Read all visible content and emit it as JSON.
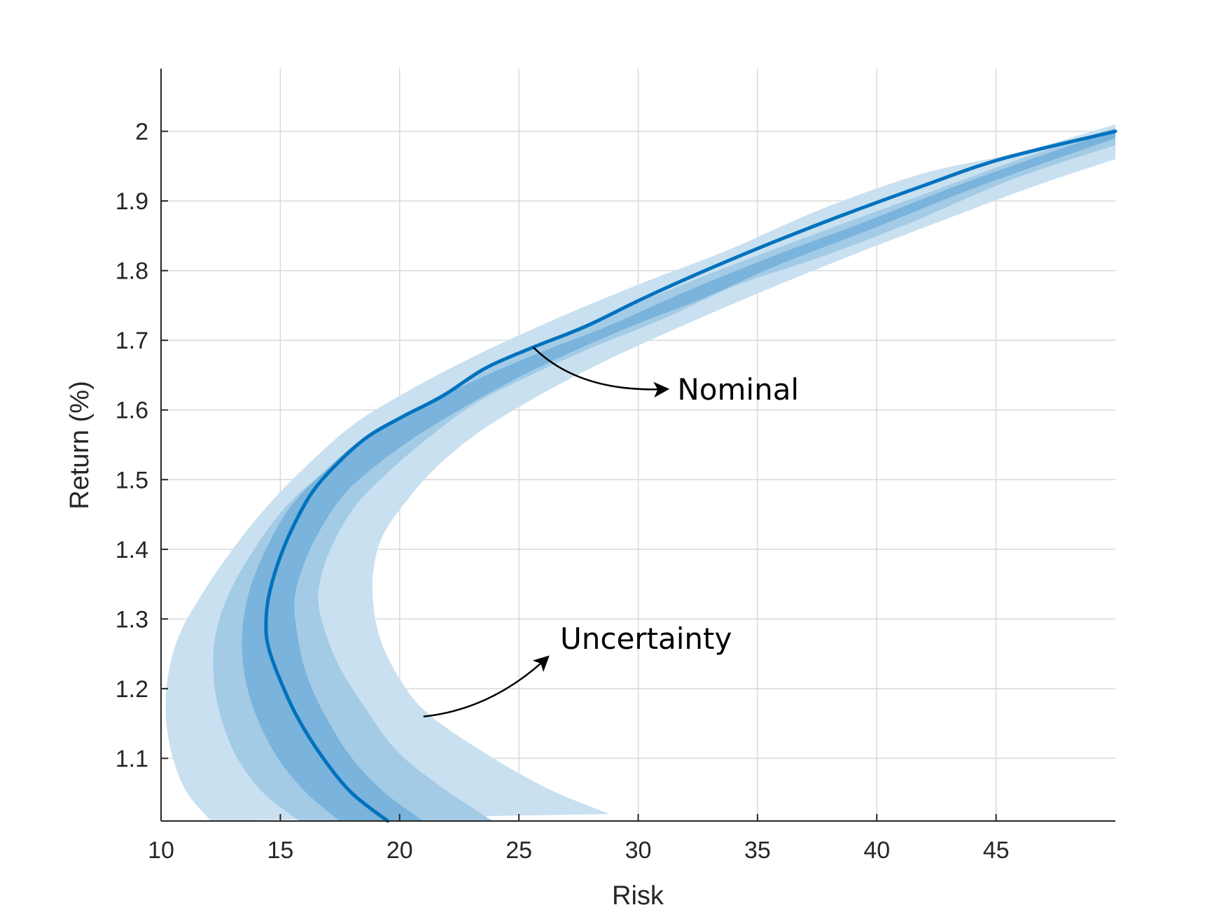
{
  "chart_data": {
    "type": "line",
    "xlabel": "Risk",
    "ylabel": "Return (%)",
    "xlim": [
      10,
      50
    ],
    "ylim": [
      1.01,
      2.09
    ],
    "xticks": [
      10,
      15,
      20,
      25,
      30,
      35,
      40,
      45
    ],
    "yticks": [
      1.1,
      1.2,
      1.3,
      1.4,
      1.5,
      1.6,
      1.7,
      1.8,
      1.9,
      2.0
    ],
    "xtick_labels": [
      "10",
      "15",
      "20",
      "25",
      "30",
      "35",
      "40",
      "45"
    ],
    "ytick_labels": [
      "1.1",
      "1.2",
      "1.3",
      "1.4",
      "1.5",
      "1.6",
      "1.7",
      "1.8",
      "1.9",
      "2"
    ],
    "grid": true,
    "series": [
      {
        "name": "Nominal",
        "color": "#0072bd",
        "points": [
          [
            19.5,
            1.01
          ],
          [
            18.0,
            1.05
          ],
          [
            16.8,
            1.1
          ],
          [
            15.7,
            1.16
          ],
          [
            14.9,
            1.22
          ],
          [
            14.5,
            1.26
          ],
          [
            14.4,
            1.29
          ],
          [
            14.5,
            1.33
          ],
          [
            14.9,
            1.38
          ],
          [
            15.5,
            1.43
          ],
          [
            16.3,
            1.48
          ],
          [
            17.3,
            1.52
          ],
          [
            18.6,
            1.56
          ],
          [
            20.1,
            1.59
          ],
          [
            21.8,
            1.62
          ],
          [
            23.6,
            1.66
          ],
          [
            25.6,
            1.69
          ],
          [
            27.8,
            1.72
          ],
          [
            30.2,
            1.76
          ],
          [
            32.8,
            1.8
          ],
          [
            35.6,
            1.84
          ],
          [
            38.6,
            1.88
          ],
          [
            41.8,
            1.92
          ],
          [
            45.2,
            1.96
          ],
          [
            50.0,
            2.0
          ]
        ]
      }
    ],
    "bands": [
      {
        "name": "outer",
        "color": "#c9e0f0",
        "left": [
          [
            12.1,
            1.01
          ],
          [
            11.1,
            1.05
          ],
          [
            10.5,
            1.1
          ],
          [
            10.2,
            1.16
          ],
          [
            10.3,
            1.22
          ],
          [
            10.8,
            1.28
          ],
          [
            11.8,
            1.34
          ],
          [
            13.0,
            1.4
          ],
          [
            14.4,
            1.46
          ],
          [
            16.1,
            1.52
          ],
          [
            18.1,
            1.58
          ],
          [
            20.5,
            1.63
          ],
          [
            23.3,
            1.68
          ],
          [
            26.5,
            1.73
          ],
          [
            30.0,
            1.78
          ],
          [
            33.8,
            1.83
          ],
          [
            37.8,
            1.89
          ],
          [
            42.0,
            1.94
          ],
          [
            46.0,
            1.97
          ],
          [
            50.0,
            2.01
          ]
        ],
        "right": [
          [
            28.8,
            1.02
          ],
          [
            26.0,
            1.06
          ],
          [
            23.0,
            1.12
          ],
          [
            21.0,
            1.17
          ],
          [
            19.9,
            1.22
          ],
          [
            19.2,
            1.27
          ],
          [
            18.9,
            1.32
          ],
          [
            18.9,
            1.37
          ],
          [
            19.3,
            1.42
          ],
          [
            20.3,
            1.47
          ],
          [
            21.6,
            1.52
          ],
          [
            23.4,
            1.57
          ],
          [
            25.8,
            1.62
          ],
          [
            28.6,
            1.67
          ],
          [
            31.8,
            1.72
          ],
          [
            35.2,
            1.77
          ],
          [
            38.8,
            1.82
          ],
          [
            42.6,
            1.87
          ],
          [
            46.5,
            1.92
          ],
          [
            50.0,
            1.96
          ]
        ]
      },
      {
        "name": "middle",
        "color": "#a3cbe6",
        "left": [
          [
            15.8,
            1.01
          ],
          [
            14.3,
            1.05
          ],
          [
            13.2,
            1.1
          ],
          [
            12.5,
            1.16
          ],
          [
            12.2,
            1.22
          ],
          [
            12.3,
            1.28
          ],
          [
            12.9,
            1.34
          ],
          [
            13.9,
            1.4
          ],
          [
            15.2,
            1.46
          ],
          [
            16.8,
            1.51
          ],
          [
            18.8,
            1.56
          ],
          [
            21.1,
            1.61
          ],
          [
            23.8,
            1.66
          ],
          [
            26.9,
            1.71
          ],
          [
            30.4,
            1.76
          ],
          [
            34.1,
            1.81
          ],
          [
            38.0,
            1.86
          ],
          [
            42.0,
            1.91
          ],
          [
            46.0,
            1.96
          ],
          [
            50.0,
            2.005
          ]
        ],
        "right": [
          [
            23.9,
            1.01
          ],
          [
            21.7,
            1.06
          ],
          [
            19.9,
            1.11
          ],
          [
            18.6,
            1.17
          ],
          [
            17.5,
            1.23
          ],
          [
            16.8,
            1.29
          ],
          [
            16.6,
            1.34
          ],
          [
            17.1,
            1.4
          ],
          [
            18.1,
            1.46
          ],
          [
            19.5,
            1.51
          ],
          [
            21.2,
            1.56
          ],
          [
            23.2,
            1.61
          ],
          [
            25.5,
            1.65
          ],
          [
            28.1,
            1.69
          ],
          [
            31.0,
            1.73
          ],
          [
            34.2,
            1.78
          ],
          [
            37.7,
            1.82
          ],
          [
            41.5,
            1.87
          ],
          [
            45.6,
            1.93
          ],
          [
            50.0,
            1.98
          ]
        ]
      },
      {
        "name": "inner",
        "color": "#7ab3db",
        "left": [
          [
            17.5,
            1.01
          ],
          [
            16.1,
            1.05
          ],
          [
            14.9,
            1.1
          ],
          [
            14.0,
            1.16
          ],
          [
            13.5,
            1.22
          ],
          [
            13.4,
            1.28
          ],
          [
            13.7,
            1.34
          ],
          [
            14.4,
            1.4
          ],
          [
            15.4,
            1.46
          ],
          [
            16.8,
            1.51
          ],
          [
            18.5,
            1.56
          ],
          [
            20.6,
            1.6
          ],
          [
            23.0,
            1.64
          ],
          [
            25.7,
            1.68
          ],
          [
            28.7,
            1.72
          ],
          [
            32.0,
            1.77
          ],
          [
            35.6,
            1.82
          ],
          [
            39.5,
            1.87
          ],
          [
            44.0,
            1.93
          ],
          [
            50.0,
            2.002
          ]
        ],
        "right": [
          [
            21.0,
            1.01
          ],
          [
            19.4,
            1.05
          ],
          [
            18.0,
            1.1
          ],
          [
            16.9,
            1.16
          ],
          [
            16.1,
            1.22
          ],
          [
            15.7,
            1.28
          ],
          [
            15.6,
            1.33
          ],
          [
            16.0,
            1.38
          ],
          [
            16.7,
            1.43
          ],
          [
            17.7,
            1.48
          ],
          [
            19.0,
            1.52
          ],
          [
            20.6,
            1.56
          ],
          [
            22.5,
            1.6
          ],
          [
            24.6,
            1.64
          ],
          [
            27.0,
            1.68
          ],
          [
            29.7,
            1.72
          ],
          [
            32.7,
            1.76
          ],
          [
            36.0,
            1.81
          ],
          [
            39.8,
            1.86
          ],
          [
            44.2,
            1.92
          ],
          [
            50.0,
            1.99
          ]
        ]
      }
    ],
    "annotations": [
      {
        "text": "Nominal",
        "arrow_from": [
          25.6,
          1.69
        ],
        "arrow_to": [
          31.2,
          1.63
        ]
      },
      {
        "text": "Uncertainty",
        "arrow_from": [
          21.0,
          1.16
        ],
        "arrow_to": [
          26.2,
          1.245
        ]
      }
    ]
  }
}
